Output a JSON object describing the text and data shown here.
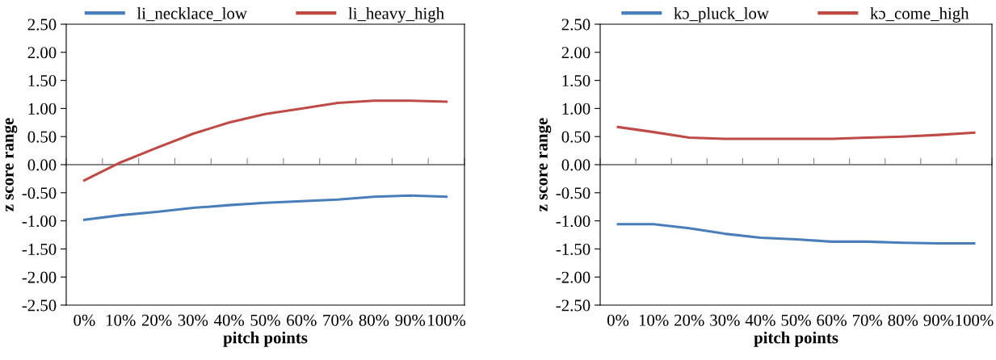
{
  "chart_data": [
    {
      "type": "line",
      "xlabel": "pitch points",
      "ylabel": "z score range",
      "categories": [
        "0%",
        "10%",
        "20%",
        "30%",
        "40%",
        "50%",
        "60%",
        "70%",
        "80%",
        "90%",
        "100%"
      ],
      "series": [
        {
          "name": "li_necklace_low",
          "color": "#4a7ebb",
          "values": [
            -0.98,
            -0.9,
            -0.84,
            -0.77,
            -0.72,
            -0.68,
            -0.65,
            -0.62,
            -0.57,
            -0.55,
            -0.57
          ]
        },
        {
          "name": "li_heavy_high",
          "color": "#be4b48",
          "values": [
            -0.28,
            0.04,
            0.3,
            0.55,
            0.75,
            0.9,
            1.0,
            1.1,
            1.14,
            1.14,
            1.12
          ]
        }
      ],
      "ylim": [
        -2.5,
        2.5
      ],
      "yticks": [
        {
          "value": -2.5,
          "label": "-2.50"
        },
        {
          "value": -2.0,
          "label": "-2.00"
        },
        {
          "value": -1.5,
          "label": "-1.50"
        },
        {
          "value": -1.0,
          "label": "-1.00"
        },
        {
          "value": -0.5,
          "label": "-0.50"
        },
        {
          "value": 0,
          "label": "0.00"
        },
        {
          "value": 0.5,
          "label": "0.50"
        },
        {
          "value": 1.0,
          "label": "1.00"
        },
        {
          "value": 1.5,
          "label": "1.50"
        },
        {
          "value": 2.0,
          "label": "2.00"
        },
        {
          "value": 2.5,
          "label": "2.50"
        }
      ],
      "ref_lines": [
        {
          "axis": "y",
          "value": 0,
          "color": "#888888"
        }
      ],
      "grid": false,
      "legend": "top",
      "marker": "none",
      "line_style": "solid"
    },
    {
      "type": "line",
      "xlabel": "pitch points",
      "ylabel": "z score range",
      "categories": [
        "0%",
        "10%",
        "20%",
        "30%",
        "40%",
        "50%",
        "60%",
        "70%",
        "80%",
        "90%",
        "100%"
      ],
      "series": [
        {
          "name": "kɔ_pluck_low",
          "color": "#4a7ebb",
          "values": [
            -1.06,
            -1.06,
            -1.13,
            -1.23,
            -1.3,
            -1.33,
            -1.37,
            -1.37,
            -1.39,
            -1.4,
            -1.4
          ]
        },
        {
          "name": "kɔ_come_high",
          "color": "#be4b48",
          "values": [
            0.67,
            0.58,
            0.48,
            0.46,
            0.46,
            0.46,
            0.46,
            0.48,
            0.5,
            0.53,
            0.57
          ]
        }
      ],
      "ylim": [
        -2.5,
        2.5
      ],
      "yticks": [
        {
          "value": -2.5,
          "label": "-2.50"
        },
        {
          "value": -2.0,
          "label": "-2.00"
        },
        {
          "value": -1.5,
          "label": "-1.50"
        },
        {
          "value": -1.0,
          "label": "-1.00"
        },
        {
          "value": -0.5,
          "label": "-0.50"
        },
        {
          "value": 0,
          "label": "0.00"
        },
        {
          "value": 0.5,
          "label": "0.50"
        },
        {
          "value": 1.0,
          "label": "1.00"
        },
        {
          "value": 1.5,
          "label": "1.50"
        },
        {
          "value": 2.0,
          "label": "2.00"
        },
        {
          "value": 2.5,
          "label": "2.50"
        }
      ],
      "ref_lines": [
        {
          "axis": "y",
          "value": 0,
          "color": "#888888"
        }
      ],
      "grid": false,
      "legend": "top",
      "marker": "none",
      "line_style": "solid"
    }
  ]
}
